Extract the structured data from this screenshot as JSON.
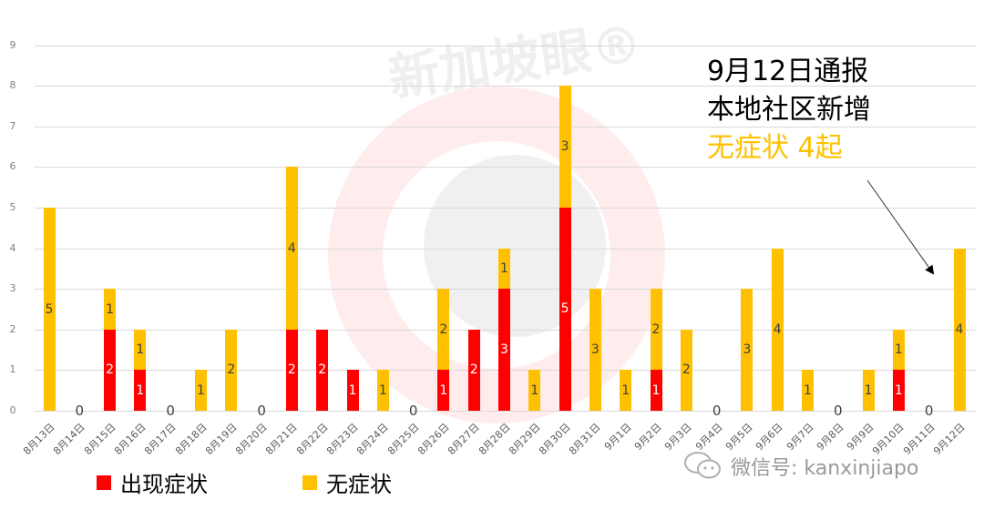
{
  "chart_data": {
    "type": "bar",
    "stacked": true,
    "title": "",
    "xlabel": "",
    "ylabel": "",
    "ylim": [
      0,
      9
    ],
    "yticks": [
      "0",
      "1",
      "2",
      "3",
      "4",
      "5",
      "6",
      "7",
      "8",
      "9"
    ],
    "grid": true,
    "legend_position": "bottom",
    "categories": [
      "8月13日",
      "8月14日",
      "8月15日",
      "8月16日",
      "8月17日",
      "8月18日",
      "8月19日",
      "8月20日",
      "8月21日",
      "8月22日",
      "8月23日",
      "8月24日",
      "8月25日",
      "8月26日",
      "8月27日",
      "8月28日",
      "8月29日",
      "8月30日",
      "8月31日",
      "9月1日",
      "9月2日",
      "9月3日",
      "9月4日",
      "9月5日",
      "9月6日",
      "9月7日",
      "9月8日",
      "9月9日",
      "9月10日",
      "9月11日",
      "9月12日"
    ],
    "series": [
      {
        "name": "出现症状",
        "color": "#ff0000",
        "values": [
          0,
          0,
          2,
          1,
          0,
          0,
          0,
          0,
          2,
          2,
          1,
          0,
          0,
          1,
          2,
          3,
          0,
          5,
          0,
          0,
          1,
          0,
          0,
          0,
          0,
          0,
          0,
          0,
          1,
          0,
          0
        ]
      },
      {
        "name": "无症状",
        "color": "#ffc000",
        "values": [
          5,
          0,
          1,
          1,
          0,
          1,
          2,
          0,
          4,
          0,
          0,
          1,
          0,
          2,
          0,
          1,
          1,
          3,
          3,
          1,
          2,
          2,
          0,
          3,
          4,
          1,
          0,
          1,
          1,
          0,
          4
        ]
      }
    ],
    "annotations": [
      {
        "lines": [
          "9月12日通报",
          "本地社区新增"
        ],
        "highlight": "无症状 4起",
        "highlight_color": "#ffc000",
        "arrow_to": "9月12日"
      }
    ]
  },
  "legend": {
    "symptomatic": "出现症状",
    "asymptomatic": "无症状"
  },
  "annotation": {
    "line1": "9月12日通报",
    "line2": "本地社区新增",
    "line3": "无症状 4起"
  },
  "watermark": {
    "brand": "新加坡眼®",
    "wechat": "微信号: kanxinjiapo"
  }
}
